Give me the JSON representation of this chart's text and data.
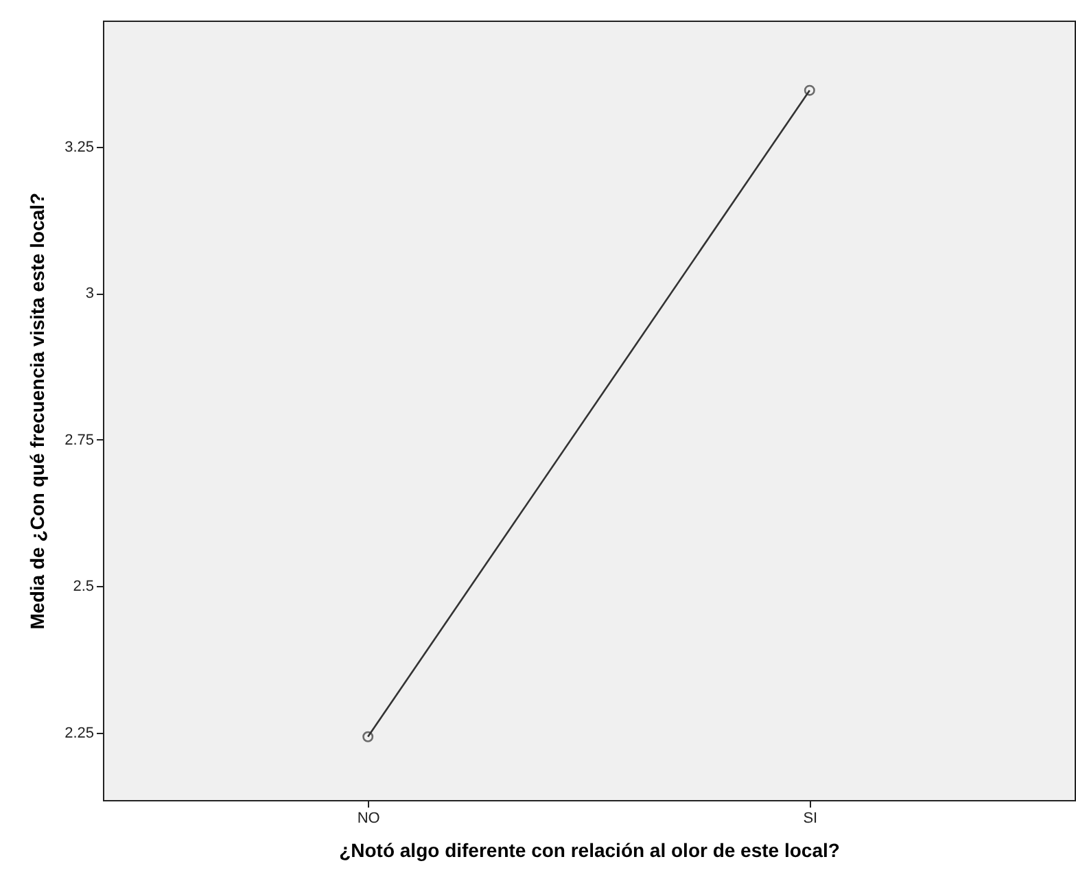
{
  "chart_data": {
    "type": "line",
    "xlabel": "¿Notó algo diferente con relación al olor de este local?",
    "ylabel": "Media de ¿Con qué frecuencia visita este local?",
    "categories": [
      "NO",
      "SI"
    ],
    "values": [
      2.243,
      3.346
    ],
    "color": "#333333",
    "ylim": [
      2.135,
      3.465
    ],
    "yticks": [
      {
        "value": 2.25,
        "label": "2.25"
      },
      {
        "value": 2.5,
        "label": "2.5"
      },
      {
        "value": 2.75,
        "label": "2.75"
      },
      {
        "value": 3,
        "label": "3"
      },
      {
        "value": 3.25,
        "label": "3.25"
      }
    ],
    "marker": "circle",
    "line_style": "solid",
    "grid": false
  }
}
